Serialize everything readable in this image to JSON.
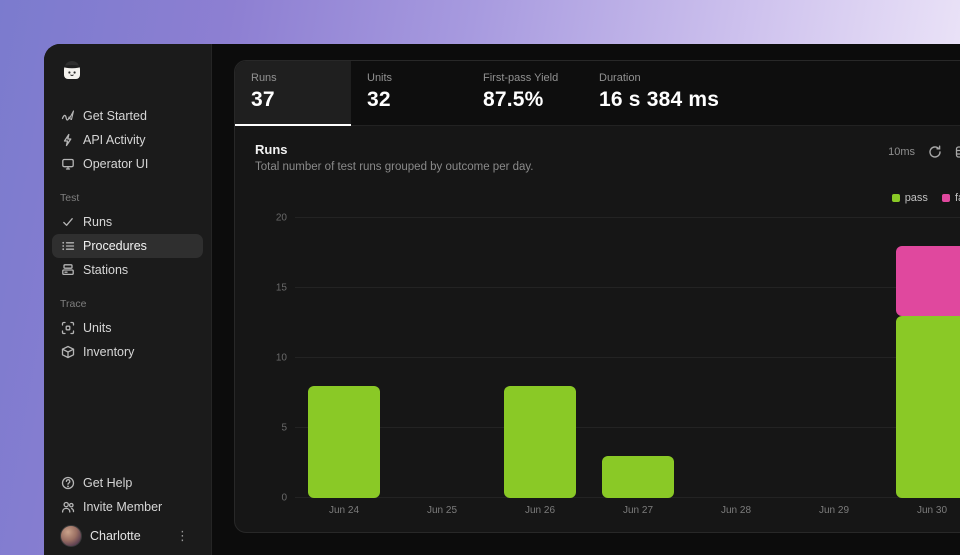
{
  "sidebar": {
    "logo": "tofu-mascot-logo",
    "sections": [
      {
        "label": "",
        "items": [
          {
            "label": "Get Started",
            "icon": "get-started-icon",
            "selected": false
          },
          {
            "label": "API Activity",
            "icon": "api-activity-icon",
            "selected": false
          },
          {
            "label": "Operator UI",
            "icon": "operator-ui-icon",
            "selected": false
          }
        ]
      },
      {
        "label": "Test",
        "items": [
          {
            "label": "Runs",
            "icon": "runs-check-icon",
            "selected": false
          },
          {
            "label": "Procedures",
            "icon": "procedures-list-icon",
            "selected": true
          },
          {
            "label": "Stations",
            "icon": "stations-icon",
            "selected": false
          }
        ]
      },
      {
        "label": "Trace",
        "items": [
          {
            "label": "Units",
            "icon": "units-scan-icon",
            "selected": false
          },
          {
            "label": "Inventory",
            "icon": "inventory-box-icon",
            "selected": false
          }
        ]
      }
    ],
    "footer_items": [
      {
        "label": "Get Help",
        "icon": "help-icon"
      },
      {
        "label": "Invite Member",
        "icon": "invite-member-icon"
      }
    ],
    "user": {
      "name": "Charlotte"
    }
  },
  "stats_tabs": [
    {
      "label": "Runs",
      "value": "37",
      "active": true
    },
    {
      "label": "Units",
      "value": "32",
      "active": false
    },
    {
      "label": "First-pass Yield",
      "value": "87.5%",
      "active": false
    },
    {
      "label": "Duration",
      "value": "16 s 384 ms",
      "active": false
    }
  ],
  "panel": {
    "title": "Runs",
    "subtitle": "Total number of test runs grouped by outcome per day.",
    "latency": "10ms"
  },
  "chart_data": {
    "type": "bar",
    "stacked": true,
    "title": "Runs",
    "categories": [
      "Jun 24",
      "Jun 25",
      "Jun 26",
      "Jun 27",
      "Jun 28",
      "Jun 29",
      "Jun 30"
    ],
    "series": [
      {
        "name": "pass",
        "color": "#8ac926",
        "values": [
          8,
          0,
          8,
          3,
          0,
          0,
          13
        ]
      },
      {
        "name": "fail",
        "color": "#e0489e",
        "values": [
          0,
          0,
          0,
          0,
          0,
          0,
          5
        ]
      }
    ],
    "ylim": [
      0,
      20
    ],
    "yticks": [
      0,
      5,
      10,
      15,
      20
    ],
    "grid": true,
    "legend_position": "top-right"
  },
  "colors": {
    "pass": "#8ac926",
    "fail": "#e0489e",
    "card_bg": "#161616",
    "sidebar_bg": "#1b1b1b",
    "accent_underline": "#ffffff"
  }
}
